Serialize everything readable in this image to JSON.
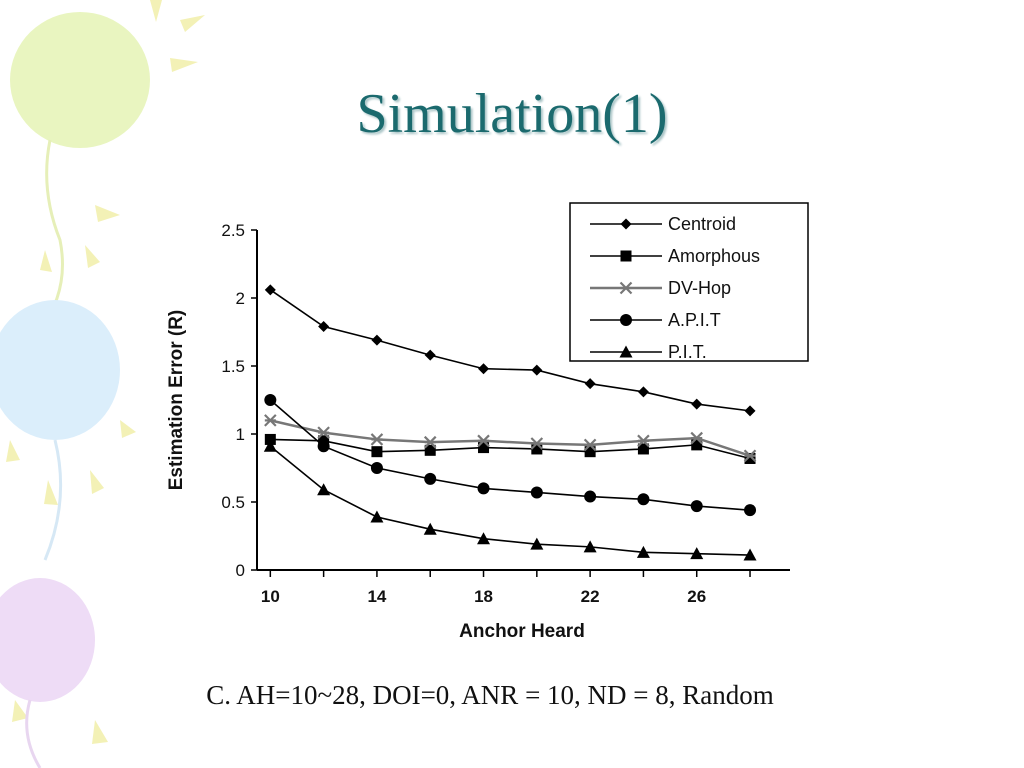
{
  "slide": {
    "title": "Simulation(1)",
    "caption": "C. AH=10~28, DOI=0, ANR = 10, ND = 8, Random"
  },
  "colors": {
    "title": "#1b6a6e",
    "balloon_green": "#e9f5c0",
    "balloon_blue": "#dbeefb",
    "balloon_purple": "#eedcf6",
    "sun_rays": "#f3f1b6"
  },
  "chart_data": {
    "type": "line",
    "xlabel": "Anchor Heard",
    "ylabel": "Estimation Error  (R)",
    "xlim": [
      9.5,
      29.5
    ],
    "ylim": [
      0,
      2.5
    ],
    "x_ticks": [
      10,
      14,
      18,
      22,
      26
    ],
    "y_ticks": [
      0,
      0.5,
      1,
      1.5,
      2,
      2.5
    ],
    "x": [
      10,
      12,
      14,
      16,
      18,
      20,
      22,
      24,
      26,
      28
    ],
    "legend_position": "top-right",
    "series": [
      {
        "name": "Centroid",
        "marker": "diamond",
        "color": "#000000",
        "values": [
          2.06,
          1.79,
          1.69,
          1.58,
          1.48,
          1.47,
          1.37,
          1.31,
          1.22,
          1.17
        ]
      },
      {
        "name": "Amorphous",
        "marker": "square",
        "color": "#000000",
        "values": [
          0.96,
          0.95,
          0.87,
          0.88,
          0.9,
          0.89,
          0.87,
          0.89,
          0.92,
          0.82
        ]
      },
      {
        "name": "DV-Hop",
        "marker": "star",
        "color": "#777777",
        "values": [
          1.1,
          1.01,
          0.96,
          0.94,
          0.95,
          0.93,
          0.92,
          0.95,
          0.97,
          0.84
        ]
      },
      {
        "name": "A.P.I.T",
        "marker": "circle",
        "color": "#000000",
        "values": [
          1.25,
          0.91,
          0.75,
          0.67,
          0.6,
          0.57,
          0.54,
          0.52,
          0.47,
          0.44
        ]
      },
      {
        "name": "P.I.T.",
        "marker": "triangle",
        "color": "#000000",
        "values": [
          0.91,
          0.59,
          0.39,
          0.3,
          0.23,
          0.19,
          0.17,
          0.13,
          0.12,
          0.11
        ]
      }
    ]
  }
}
